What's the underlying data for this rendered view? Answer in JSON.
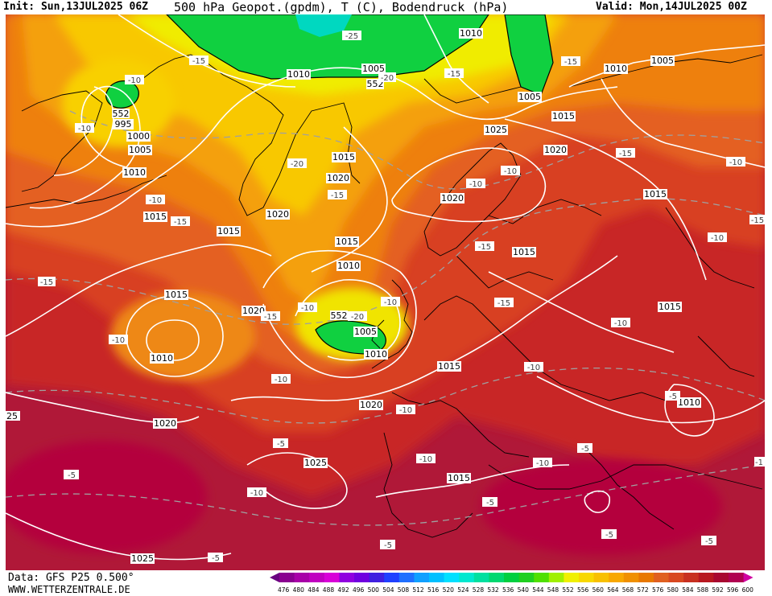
{
  "header": {
    "init": "Init: Sun,13JUL2025 06Z",
    "title": "500 hPa Geopot.(gpdm), T (C), Bodendruck (hPa)",
    "valid": "Valid: Mon,14JUL2025 00Z"
  },
  "footer": {
    "data_source": "Data: GFS P25 0.500°",
    "website": "WWW.WETTERZENTRALE.DE"
  },
  "legend": {
    "values": [
      "476",
      "480",
      "484",
      "488",
      "492",
      "496",
      "500",
      "504",
      "508",
      "512",
      "516",
      "520",
      "524",
      "528",
      "532",
      "536",
      "540",
      "544",
      "548",
      "552",
      "556",
      "560",
      "564",
      "568",
      "572",
      "576",
      "580",
      "584",
      "588",
      "592",
      "596",
      "600"
    ],
    "colors": [
      "#6a0080",
      "#8a0090",
      "#a800a8",
      "#c000c0",
      "#d800d8",
      "#9000e0",
      "#7000e0",
      "#4020e0",
      "#2040ff",
      "#2070ff",
      "#10a0ff",
      "#00c0ff",
      "#00e0ff",
      "#00e8d0",
      "#00e0a0",
      "#00d870",
      "#00d040",
      "#20d020",
      "#50e000",
      "#a0f000",
      "#f0f000",
      "#f8d800",
      "#f8c000",
      "#f8a800",
      "#f09000",
      "#e87800",
      "#e06020",
      "#d84820",
      "#c83020",
      "#b81820",
      "#a80830",
      "#b00050",
      "#d000a0"
    ]
  },
  "map": {
    "pressure_labels": [
      {
        "v": "1010"
      },
      {
        "v": "1005"
      },
      {
        "v": "552"
      },
      {
        "v": "1010"
      },
      {
        "v": "1005"
      },
      {
        "v": "1010"
      },
      {
        "v": "1005"
      },
      {
        "v": "1015"
      },
      {
        "v": "1025"
      },
      {
        "v": "1020"
      },
      {
        "v": "995"
      },
      {
        "v": "552"
      },
      {
        "v": "1000"
      },
      {
        "v": "1005"
      },
      {
        "v": "1010"
      },
      {
        "v": "1015"
      },
      {
        "v": "1015"
      },
      {
        "v": "1020"
      },
      {
        "v": "1015"
      },
      {
        "v": "1020"
      },
      {
        "v": "1020"
      },
      {
        "v": "1015"
      },
      {
        "v": "1010"
      },
      {
        "v": "1015"
      },
      {
        "v": "1015"
      },
      {
        "v": "1015"
      },
      {
        "v": "1020"
      },
      {
        "v": "1005"
      },
      {
        "v": "1010"
      },
      {
        "v": "1015"
      },
      {
        "v": "1010"
      },
      {
        "v": "1020"
      },
      {
        "v": "1020"
      },
      {
        "v": "1025"
      },
      {
        "v": "1015"
      },
      {
        "v": "1010"
      },
      {
        "v": "1015"
      },
      {
        "v": "1025"
      },
      {
        "v": "552"
      }
    ],
    "temp_labels": [
      {
        "v": "-25"
      },
      {
        "v": "-15"
      },
      {
        "v": "-20"
      },
      {
        "v": "-15"
      },
      {
        "v": "-15"
      },
      {
        "v": "-10"
      },
      {
        "v": "-10"
      },
      {
        "v": "-20"
      },
      {
        "v": "-15"
      },
      {
        "v": "-10"
      },
      {
        "v": "-15"
      },
      {
        "v": "-10"
      },
      {
        "v": "-10"
      },
      {
        "v": "-15"
      },
      {
        "v": "-15"
      },
      {
        "v": "-10"
      },
      {
        "v": "-15"
      },
      {
        "v": "-10"
      },
      {
        "v": "-10"
      },
      {
        "v": "-15"
      },
      {
        "v": "-10"
      },
      {
        "v": "-20"
      },
      {
        "v": "-10"
      },
      {
        "v": "-15"
      },
      {
        "v": "-15"
      },
      {
        "v": "-10"
      },
      {
        "v": "-10"
      },
      {
        "v": "-10"
      },
      {
        "v": "-10"
      },
      {
        "v": "-10"
      },
      {
        "v": "-5"
      },
      {
        "v": "-10"
      },
      {
        "v": "-5"
      },
      {
        "v": "-5"
      },
      {
        "v": "-5"
      },
      {
        "v": "-5"
      },
      {
        "v": "-5"
      },
      {
        "v": "-5"
      },
      {
        "v": "-1"
      },
      {
        "v": "-10"
      },
      {
        "v": "-5"
      },
      {
        "v": "-5"
      }
    ],
    "edge_label": "25"
  }
}
